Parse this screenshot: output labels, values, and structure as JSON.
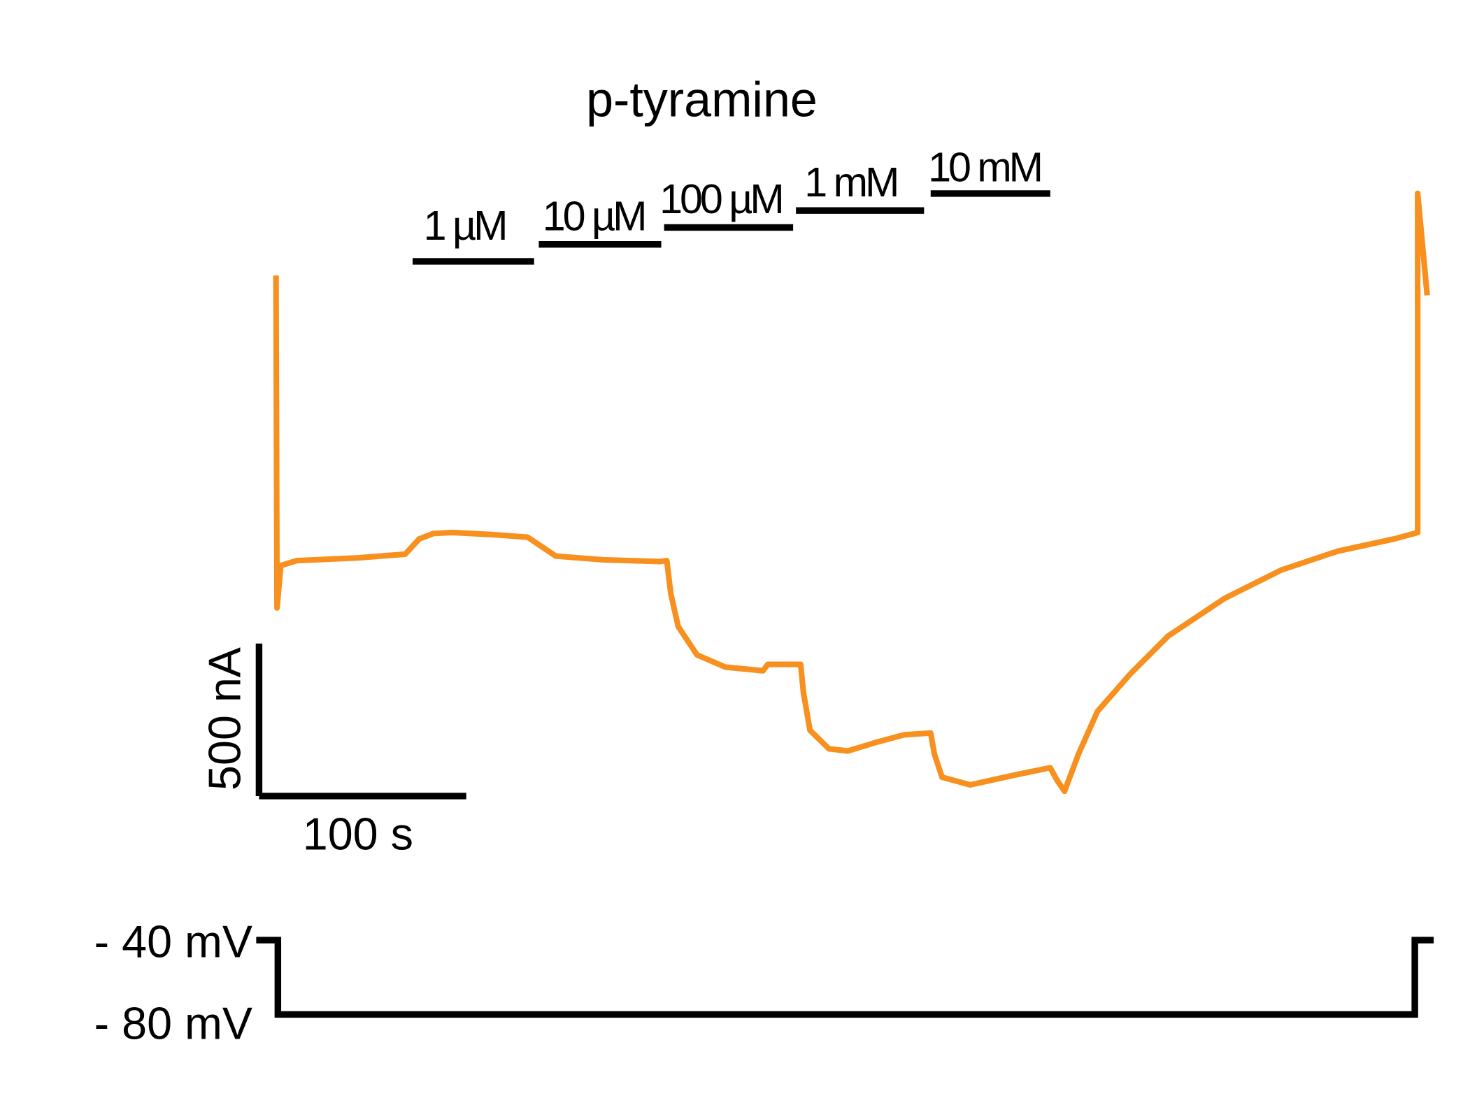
{
  "chart_data": {
    "type": "line",
    "title": "p-tyramine",
    "concentrations": [
      "1 µM",
      "10 µM",
      "100 µM",
      "1 mM",
      "10 mM"
    ],
    "x": [
      0,
      0.5,
      2.3,
      10,
      39.5,
      62.3,
      69.1,
      75.9,
      85,
      103.2,
      121.4,
      128.2,
      135,
      157.7,
      185,
      188.6,
      190.5,
      194.1,
      203.2,
      216.8,
      235,
      237.3,
      253.2,
      254.5,
      257.7,
      266.8,
      275.9,
      289.5,
      303.2,
      315.9,
      317.7,
      321.4,
      335,
      357.7,
      373.6,
      376.8,
      380.5,
      387.3,
      396.4,
      412.3,
      430.5,
      457.7,
      485,
      512.3,
      539.5,
      550.9,
      550.9,
      555.5
    ],
    "series": [
      {
        "color": "#f7901e",
        "values": [
          0,
          -1090,
          -951,
          -935,
          -926,
          -914,
          -864,
          -846,
          -843,
          -849,
          -858,
          -889,
          -920,
          -932,
          -938,
          -935,
          -1043,
          -1151,
          -1244,
          -1284,
          -1296,
          -1275,
          -1275,
          -1367,
          -1491,
          -1552,
          -1559,
          -1531,
          -1506,
          -1500,
          -1568,
          -1645,
          -1670,
          -1636,
          -1614,
          -1654,
          -1691,
          -1568,
          -1429,
          -1306,
          -1182,
          -1059,
          -966,
          -904,
          -864,
          -843,
          269,
          -65
        ]
      }
    ],
    "scale_bars": [
      {
        "value": 500,
        "label": "500 nA"
      },
      {
        "value": 100,
        "label": "100 s"
      }
    ],
    "voltage_labels": [
      "- 40 mV",
      "- 80 mV"
    ]
  }
}
